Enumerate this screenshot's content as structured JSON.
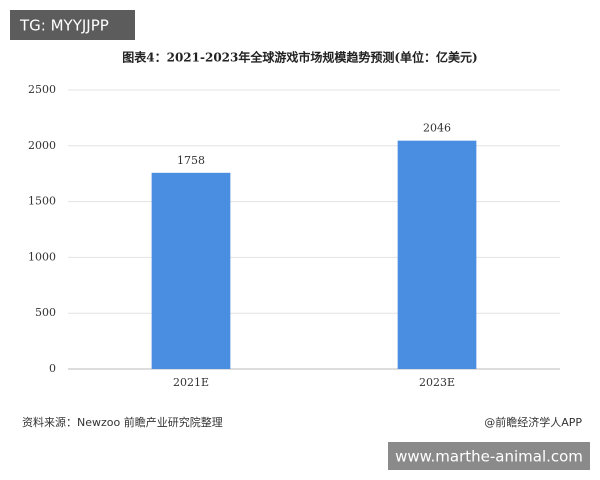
{
  "chart_data": {
    "type": "bar",
    "title": "图表4：2021-2023年全球游戏市场规模趋势预测(单位：亿美元)",
    "categories": [
      "2021E",
      "2023E"
    ],
    "values": [
      1758,
      2046
    ],
    "color": "#4a8ee2",
    "ylim": [
      0,
      2500
    ],
    "yticks": [
      0,
      500,
      1000,
      1500,
      2000,
      2500
    ],
    "grid": true,
    "source": "资料来源：Newzoo 前瞻产业研究院整理",
    "credit": "@前瞻经济学人APP"
  },
  "overlays": {
    "top_left": "TG: MYYJJPP",
    "bottom_right": "www.marthe-animal.com"
  }
}
